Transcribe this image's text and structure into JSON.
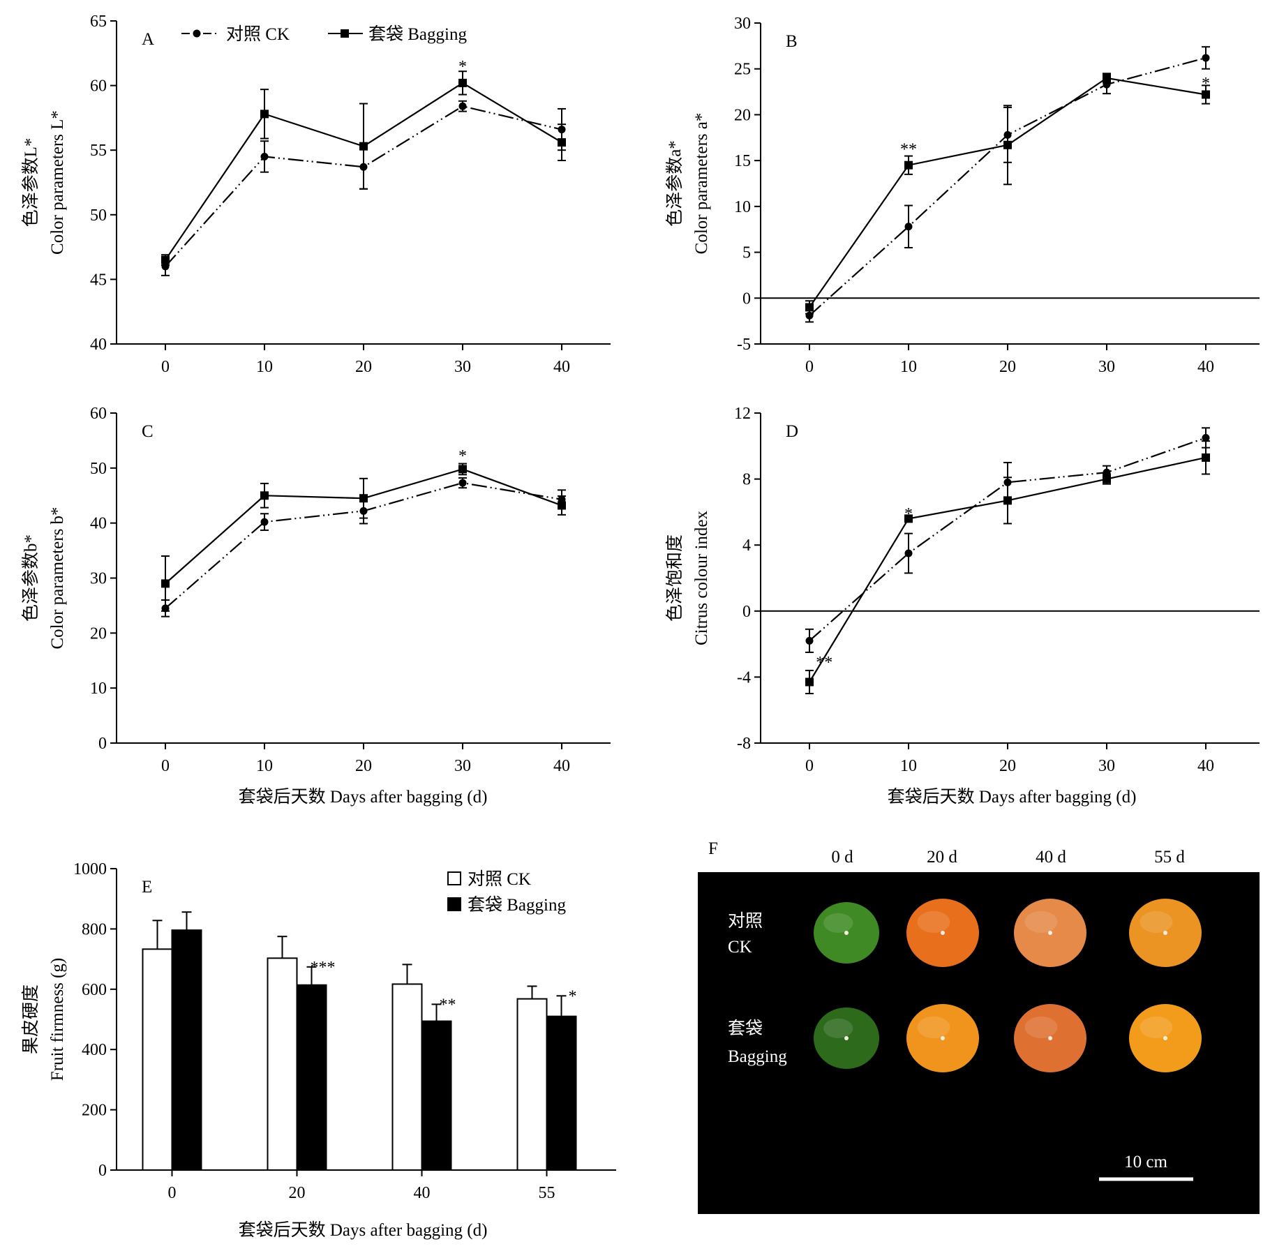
{
  "figure": {
    "x_axis_title": "套袋后天数 Days after bagging (d)",
    "legend": {
      "ck": "对照 CK",
      "bagging": "套袋 Bagging"
    }
  },
  "chart_data": [
    {
      "panel": "A",
      "type": "line",
      "x": [
        0,
        10,
        20,
        30,
        40
      ],
      "ylabel": [
        "色泽参数L*",
        "Color parameters L*"
      ],
      "ylim": [
        40,
        65
      ],
      "yticks": [
        40,
        45,
        50,
        55,
        60,
        65
      ],
      "legend_placement": "top",
      "series": [
        {
          "name": "对照 CK",
          "style": "ck",
          "values": [
            46.0,
            54.5,
            53.7,
            58.4,
            56.6
          ],
          "errors": [
            0.7,
            1.2,
            1.7,
            0.4,
            1.6
          ]
        },
        {
          "name": "套袋 Bagging",
          "style": "bagging",
          "values": [
            46.5,
            57.8,
            55.3,
            60.2,
            55.6
          ],
          "errors": [
            0.4,
            1.9,
            3.3,
            0.9,
            1.4
          ]
        }
      ],
      "annotations": [
        {
          "x": 30,
          "y": 61.6,
          "text": "*"
        }
      ]
    },
    {
      "panel": "B",
      "type": "line",
      "x": [
        0,
        10,
        20,
        30,
        40
      ],
      "ylabel": [
        "色泽参数a*",
        "Color parameters a*"
      ],
      "ylim": [
        -5,
        30
      ],
      "yticks": [
        -5,
        0,
        5,
        10,
        15,
        20,
        25,
        30
      ],
      "zero_line": true,
      "series": [
        {
          "name": "对照 CK",
          "style": "ck",
          "values": [
            -1.9,
            7.8,
            17.8,
            23.3,
            26.2
          ],
          "errors": [
            0.7,
            2.3,
            3.0,
            1.0,
            1.2
          ]
        },
        {
          "name": "套袋 Bagging",
          "style": "bagging",
          "values": [
            -1.0,
            14.5,
            16.7,
            24.0,
            22.2
          ],
          "errors": [
            0.7,
            1.0,
            4.3,
            0.5,
            1.0
          ]
        }
      ],
      "annotations": [
        {
          "x": 10,
          "y": 16.4,
          "text": "**"
        },
        {
          "x": 40,
          "y": 23.6,
          "text": "*"
        }
      ]
    },
    {
      "panel": "C",
      "type": "line",
      "x": [
        0,
        10,
        20,
        30,
        40
      ],
      "ylabel": [
        "色泽参数b*",
        "Color parameters b*"
      ],
      "ylim": [
        0,
        60
      ],
      "yticks": [
        0,
        10,
        20,
        30,
        40,
        50,
        60
      ],
      "series": [
        {
          "name": "对照 CK",
          "style": "ck",
          "values": [
            24.5,
            40.2,
            42.2,
            47.3,
            44.3
          ],
          "errors": [
            1.5,
            1.5,
            2.3,
            0.9,
            1.7
          ]
        },
        {
          "name": "套袋 Bagging",
          "style": "bagging",
          "values": [
            29.0,
            45.0,
            44.5,
            49.8,
            43.2
          ],
          "errors": [
            5.0,
            2.2,
            3.6,
            1.0,
            1.7
          ]
        }
      ],
      "annotations": [
        {
          "x": 30,
          "y": 52.5,
          "text": "*"
        }
      ]
    },
    {
      "panel": "D",
      "type": "line",
      "x": [
        0,
        10,
        20,
        30,
        40
      ],
      "ylabel": [
        "色泽饱和度",
        "Citrus colour index"
      ],
      "ylim": [
        -8,
        12
      ],
      "yticks": [
        -8,
        -4,
        0,
        4,
        8,
        12
      ],
      "zero_line": true,
      "series": [
        {
          "name": "对照 CK",
          "style": "ck",
          "values": [
            -1.8,
            3.5,
            7.8,
            8.4,
            10.5
          ],
          "errors": [
            0.7,
            1.2,
            1.2,
            0.4,
            0.6
          ]
        },
        {
          "name": "套袋 Bagging",
          "style": "bagging",
          "values": [
            -4.3,
            5.6,
            6.7,
            8.0,
            9.3
          ],
          "errors": [
            0.7,
            0.1,
            1.4,
            0.3,
            1.0
          ]
        }
      ],
      "annotations": [
        {
          "x": 1.5,
          "y": -3.0,
          "text": "**"
        },
        {
          "x": 10,
          "y": 6.0,
          "text": "*"
        }
      ]
    },
    {
      "panel": "E",
      "type": "bar",
      "categories": [
        "0",
        "20",
        "40",
        "55"
      ],
      "ylabel": [
        "果皮硬度",
        "Fruit firmness (g)"
      ],
      "ylim": [
        0,
        1000
      ],
      "yticks": [
        0,
        200,
        400,
        600,
        800,
        1000
      ],
      "legend_placement": "top-right",
      "series": [
        {
          "name": "对照 CK",
          "fill": "#ffffff",
          "values": [
            733,
            703,
            617,
            568
          ],
          "errors": [
            95,
            72,
            65,
            42
          ]
        },
        {
          "name": "套袋 Bagging",
          "fill": "#000000",
          "values": [
            796,
            614,
            494,
            510
          ],
          "errors": [
            60,
            60,
            56,
            68
          ]
        }
      ],
      "annotations": [
        {
          "category": "20",
          "text": "***"
        },
        {
          "category": "40",
          "text": "**"
        },
        {
          "category": "55",
          "text": "*"
        }
      ]
    }
  ],
  "photo": {
    "panel": "F",
    "columns": [
      "0 d",
      "20 d",
      "40 d",
      "55 d"
    ],
    "rows": [
      {
        "label": [
          "对照",
          "CK"
        ],
        "fruit_colors": [
          "#3f8a24",
          "#e8701c",
          "#e58a48",
          "#eb9424"
        ]
      },
      {
        "label": [
          "套袋",
          "Bagging"
        ],
        "fruit_colors": [
          "#2d6a1c",
          "#f1941e",
          "#de7032",
          "#f39c1c"
        ]
      }
    ],
    "scale_bar": "10 cm",
    "background": "#000000"
  }
}
